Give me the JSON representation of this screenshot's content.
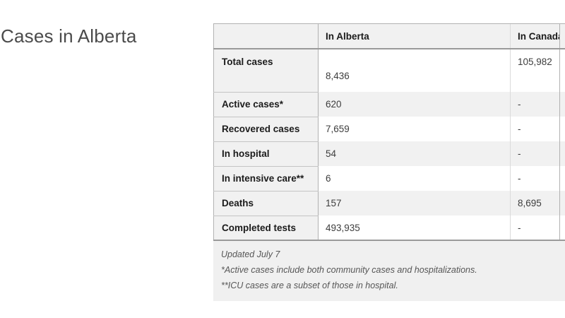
{
  "page": {
    "title": "Cases in Alberta"
  },
  "chart_data": {
    "type": "table",
    "title": "Cases in Alberta",
    "columns": [
      "",
      "In Alberta",
      "In Canada"
    ],
    "rows": [
      [
        "Total cases",
        "8,436",
        "105,982"
      ],
      [
        "Active cases*",
        "620",
        "-"
      ],
      [
        "Recovered cases",
        "7,659",
        "-"
      ],
      [
        "In hospital",
        "54",
        "-"
      ],
      [
        "In intensive care**",
        "6",
        "-"
      ],
      [
        "Deaths",
        "157",
        "8,695"
      ],
      [
        "Completed tests",
        "493,935",
        "-"
      ]
    ],
    "footnotes": [
      "Updated July 7",
      "*Active cases include both community cases and hospitalizations.",
      "**ICU cases are a subset of those in hospital."
    ],
    "layout_hints": {
      "label_column_bold": true,
      "striped_rows": [
        1,
        3,
        5
      ],
      "right_edge_cut_off": true
    }
  },
  "colors": {
    "header_bg": "#f1f1f1",
    "row_stripe_bg": "#f1f1f1",
    "label_column_bg": "#f1f1f1",
    "footnote_bg": "#f0f0f0",
    "border_dark": "#9a9a9a",
    "border_medium": "#b2b2b2",
    "border_light": "#dadada",
    "title_text": "#4b4b4b",
    "label_text": "#1b1b1b",
    "value_text": "#3d3d3d",
    "footnote_text": "#565656"
  }
}
